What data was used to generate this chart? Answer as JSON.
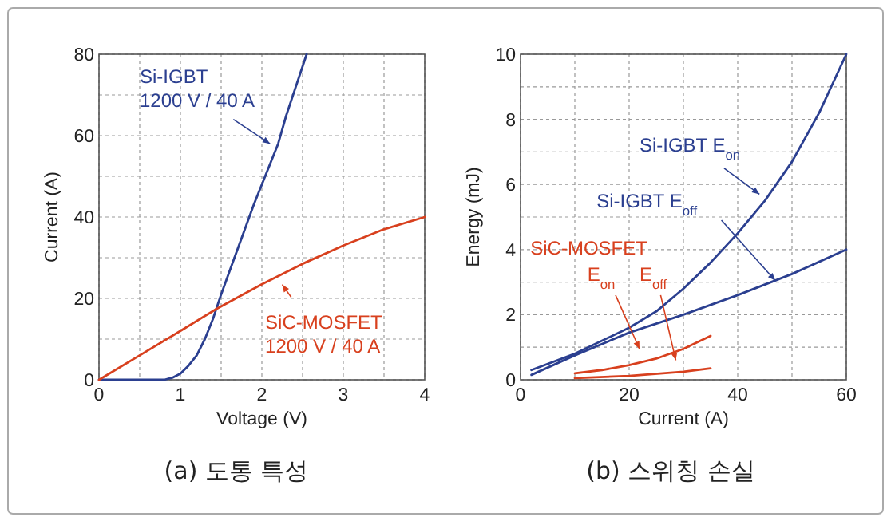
{
  "chart_data": [
    {
      "type": "line",
      "title": "(a) 도통 특성",
      "xlabel": "Voltage (V)",
      "ylabel": "Current (A)",
      "xlim": [
        0,
        4
      ],
      "ylim": [
        0,
        80
      ],
      "xticks": [
        0,
        {
          "value": 0.5,
          "label": null
        },
        1,
        {
          "value": 1.5,
          "label": null
        },
        2,
        {
          "value": 2.5,
          "label": null
        },
        3,
        {
          "value": 3.5,
          "label": null
        },
        4
      ],
      "yticks": [
        0,
        {
          "value": 10,
          "label": null
        },
        20,
        {
          "value": 30,
          "label": null
        },
        40,
        {
          "value": 50,
          "label": null
        },
        60,
        {
          "value": 70,
          "label": null
        },
        80
      ],
      "grid": true,
      "marker": "none",
      "line_style": "solid",
      "series": [
        {
          "name": "Si-IGBT\n1200 V / 40 A",
          "color": "#2b3f90",
          "x": [
            0,
            0.8,
            0.9,
            1.0,
            1.1,
            1.2,
            1.3,
            1.4,
            1.5,
            1.6,
            1.7,
            1.8,
            1.9,
            2.0,
            2.1,
            2.2,
            2.3,
            2.4,
            2.5,
            2.55
          ],
          "values": [
            0,
            0,
            0.5,
            1.5,
            3.5,
            6,
            10,
            15,
            21,
            26.5,
            32,
            37.5,
            43,
            48,
            53,
            58,
            65,
            71,
            77,
            80
          ]
        },
        {
          "name": "SiC-MOSFET\n1200 V / 40 A",
          "color": "#d8401e",
          "x": [
            0,
            0.5,
            1,
            1.45,
            2,
            2.5,
            3,
            3.5,
            4
          ],
          "values": [
            0,
            6,
            12,
            17.5,
            23.5,
            28.5,
            33,
            37,
            40
          ]
        }
      ]
    },
    {
      "type": "line",
      "title": "(b) 스위칭 손실",
      "xlabel": "Current (A)",
      "ylabel": "Energy (mJ)",
      "xlim": [
        0,
        60
      ],
      "ylim": [
        0,
        10
      ],
      "xticks": [
        0,
        {
          "value": 10,
          "label": null
        },
        20,
        {
          "value": 30,
          "label": null
        },
        40,
        {
          "value": 50,
          "label": null
        },
        60
      ],
      "yticks": [
        0,
        {
          "value": 1,
          "label": null
        },
        2,
        {
          "value": 3,
          "label": null
        },
        4,
        {
          "value": 5,
          "label": null
        },
        6,
        {
          "value": 7,
          "label": null
        },
        8,
        {
          "value": 9,
          "label": null
        },
        10
      ],
      "grid": true,
      "marker": "none",
      "line_style": "solid",
      "annotations": [
        "SiC-MOSFET"
      ],
      "series": [
        {
          "name": "Si-IGBT E$_{on}$",
          "color": "#2b3f90",
          "x": [
            2,
            10,
            20,
            25,
            30,
            35,
            40,
            45,
            50,
            55,
            60
          ],
          "values": [
            0.3,
            0.8,
            1.6,
            2.1,
            2.8,
            3.6,
            4.5,
            5.5,
            6.7,
            8.2,
            10
          ]
        },
        {
          "name": "Si-IGBT E$_{off}$",
          "color": "#2b3f90",
          "x": [
            2,
            10,
            20,
            30,
            40,
            50,
            60
          ],
          "values": [
            0.15,
            0.75,
            1.45,
            2.0,
            2.6,
            3.25,
            4.0
          ]
        },
        {
          "name": "E$_{on}$",
          "color": "#d8401e",
          "x": [
            10,
            15,
            20,
            25,
            30,
            35
          ],
          "values": [
            0.2,
            0.3,
            0.45,
            0.65,
            0.95,
            1.35
          ]
        },
        {
          "name": "E$_{off}$",
          "color": "#d8401e",
          "x": [
            10,
            20,
            30,
            35
          ],
          "values": [
            0.05,
            0.12,
            0.25,
            0.35
          ]
        }
      ]
    }
  ]
}
